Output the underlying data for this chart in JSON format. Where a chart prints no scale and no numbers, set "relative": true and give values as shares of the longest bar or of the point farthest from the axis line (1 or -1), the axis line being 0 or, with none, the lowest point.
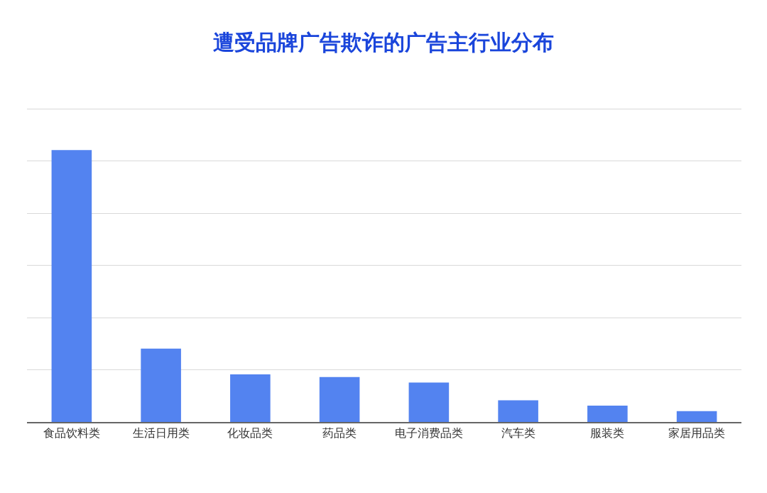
{
  "chart_data": {
    "type": "bar",
    "title": "遭受品牌广告欺诈的广告主行业分布",
    "categories": [
      "食品饮料类",
      "生活日用类",
      "化妆品类",
      "药品类",
      "电子消费品类",
      "汽车类",
      "服装类",
      "家居用品类"
    ],
    "values": [
      1,
      0.27,
      0.175,
      0.165,
      0.145,
      0.08,
      0.06,
      0.04
    ],
    "color": "#5383f0",
    "relative": true,
    "grid": "y"
  }
}
